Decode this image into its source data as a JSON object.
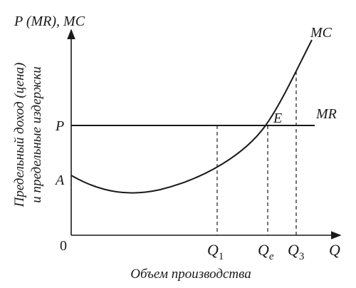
{
  "diagram": {
    "y_axis_title": "P (MR), MC",
    "y_axis_caption_line1": "Предельный доход (цена)",
    "y_axis_caption_line2": "и предельные издержки",
    "x_axis_caption": "Объем производства",
    "origin_label": "0",
    "x_axis_end_label": "Q",
    "price_label": "P",
    "intercept_label": "A",
    "mc_curve_label": "MC",
    "mr_line_label": "MR",
    "equilibrium_label": "E",
    "q1_label": "Q",
    "q1_subscript": "1",
    "qe_label": "Q",
    "qe_subscript": "e",
    "q3_label": "Q",
    "q3_subscript": "3"
  }
}
